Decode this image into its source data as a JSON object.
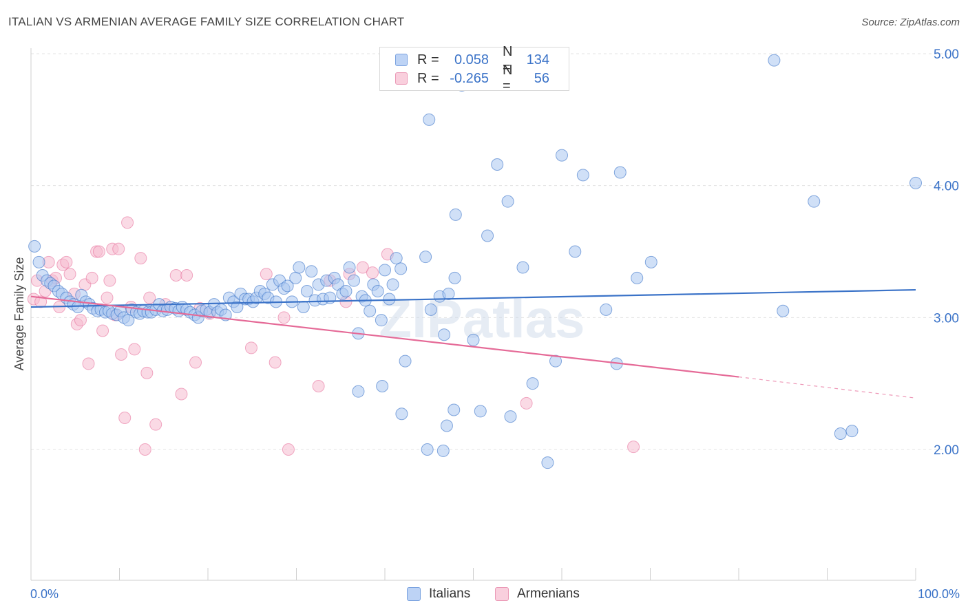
{
  "title": "ITALIAN VS ARMENIAN AVERAGE FAMILY SIZE CORRELATION CHART",
  "source": "Source: ZipAtlas.com",
  "watermark": "ZIPatlas",
  "legend": {
    "rows": [
      {
        "r_label": "R =",
        "r_value": "0.058",
        "n_label": "N =",
        "n_value": "134",
        "color": "#8fb3e8"
      },
      {
        "r_label": "R =",
        "r_value": "-0.265",
        "n_label": "N =",
        "n_value": "56",
        "color": "#f2a7c0"
      }
    ]
  },
  "bottom_legend": {
    "italians": "Italians",
    "armenians": "Armenians"
  },
  "chart_data": {
    "type": "scatter",
    "ylabel": "Average Family Size",
    "xlabel": "",
    "x_tick_labels": [
      "0.0%",
      "100.0%"
    ],
    "y_tick_labels": [
      "2.00",
      "3.00",
      "4.00",
      "5.00"
    ],
    "xlim": [
      0,
      100
    ],
    "ylim": [
      1.0,
      5.1
    ],
    "grid": true,
    "colors": {
      "italians": "#3b73c8",
      "italians_fill": "#a9c6f0",
      "armenians": "#e56a97",
      "armenians_fill": "#f5bcd0",
      "axis_text": "#3b73c8"
    },
    "series": [
      {
        "name": "Italians",
        "trend": {
          "x0": 0,
          "y0": 3.08,
          "x1": 100,
          "y1": 3.21
        },
        "points": [
          [
            0.4,
            3.54
          ],
          [
            0.9,
            3.42
          ],
          [
            1.3,
            3.32
          ],
          [
            1.8,
            3.28
          ],
          [
            2.2,
            3.26
          ],
          [
            2.6,
            3.24
          ],
          [
            3.1,
            3.2
          ],
          [
            3.5,
            3.18
          ],
          [
            4.0,
            3.15
          ],
          [
            4.4,
            3.12
          ],
          [
            4.8,
            3.1
          ],
          [
            5.3,
            3.08
          ],
          [
            5.7,
            3.17
          ],
          [
            6.2,
            3.12
          ],
          [
            6.6,
            3.1
          ],
          [
            7.0,
            3.07
          ],
          [
            7.5,
            3.05
          ],
          [
            7.9,
            3.06
          ],
          [
            8.4,
            3.04
          ],
          [
            8.8,
            3.05
          ],
          [
            9.2,
            3.03
          ],
          [
            9.7,
            3.02
          ],
          [
            10.1,
            3.05
          ],
          [
            10.5,
            3.0
          ],
          [
            11.0,
            2.98
          ],
          [
            11.4,
            3.06
          ],
          [
            11.9,
            3.04
          ],
          [
            12.3,
            3.03
          ],
          [
            12.7,
            3.05
          ],
          [
            13.2,
            3.04
          ],
          [
            13.6,
            3.04
          ],
          [
            14.1,
            3.06
          ],
          [
            14.5,
            3.1
          ],
          [
            14.9,
            3.05
          ],
          [
            15.4,
            3.06
          ],
          [
            15.8,
            3.08
          ],
          [
            16.3,
            3.07
          ],
          [
            16.7,
            3.05
          ],
          [
            17.1,
            3.08
          ],
          [
            17.6,
            3.06
          ],
          [
            18.0,
            3.04
          ],
          [
            18.5,
            3.02
          ],
          [
            18.9,
            3.0
          ],
          [
            19.3,
            3.05
          ],
          [
            19.8,
            3.06
          ],
          [
            20.2,
            3.04
          ],
          [
            20.7,
            3.1
          ],
          [
            21.1,
            3.04
          ],
          [
            21.5,
            3.06
          ],
          [
            22.0,
            3.02
          ],
          [
            22.4,
            3.15
          ],
          [
            22.9,
            3.12
          ],
          [
            23.3,
            3.08
          ],
          [
            23.7,
            3.18
          ],
          [
            24.2,
            3.14
          ],
          [
            24.6,
            3.14
          ],
          [
            25.1,
            3.12
          ],
          [
            25.5,
            3.15
          ],
          [
            25.9,
            3.2
          ],
          [
            26.4,
            3.18
          ],
          [
            26.8,
            3.15
          ],
          [
            27.3,
            3.25
          ],
          [
            27.7,
            3.12
          ],
          [
            28.1,
            3.28
          ],
          [
            28.6,
            3.22
          ],
          [
            29.0,
            3.24
          ],
          [
            29.5,
            3.12
          ],
          [
            29.9,
            3.3
          ],
          [
            30.3,
            3.38
          ],
          [
            30.8,
            3.08
          ],
          [
            31.2,
            3.2
          ],
          [
            31.7,
            3.35
          ],
          [
            32.1,
            3.13
          ],
          [
            32.5,
            3.25
          ],
          [
            33.0,
            3.14
          ],
          [
            33.4,
            3.28
          ],
          [
            33.8,
            3.15
          ],
          [
            34.3,
            3.3
          ],
          [
            34.7,
            3.25
          ],
          [
            35.2,
            3.18
          ],
          [
            35.6,
            3.2
          ],
          [
            36.0,
            3.38
          ],
          [
            36.5,
            3.28
          ],
          [
            37.0,
            2.88
          ],
          [
            37.4,
            3.16
          ],
          [
            37.8,
            3.13
          ],
          [
            38.3,
            3.05
          ],
          [
            38.7,
            3.25
          ],
          [
            39.2,
            3.2
          ],
          [
            39.6,
            2.98
          ],
          [
            40.0,
            3.36
          ],
          [
            40.5,
            3.14
          ],
          [
            40.9,
            3.25
          ],
          [
            41.3,
            3.45
          ],
          [
            41.8,
            3.37
          ],
          [
            42.3,
            2.67
          ],
          [
            44.6,
            3.46
          ],
          [
            45.0,
            4.5
          ],
          [
            45.2,
            3.06
          ],
          [
            46.2,
            3.16
          ],
          [
            46.7,
            2.87
          ],
          [
            47.2,
            3.18
          ],
          [
            47.9,
            3.3
          ],
          [
            48.0,
            3.78
          ],
          [
            48.7,
            4.76
          ],
          [
            50.8,
            2.29
          ],
          [
            50.0,
            2.83
          ],
          [
            51.6,
            3.62
          ],
          [
            52.7,
            4.16
          ],
          [
            53.9,
            3.88
          ],
          [
            54.2,
            2.25
          ],
          [
            55.6,
            3.38
          ],
          [
            56.7,
            2.5
          ],
          [
            47.8,
            2.3
          ],
          [
            47.0,
            2.18
          ],
          [
            46.6,
            1.99
          ],
          [
            44.8,
            2.0
          ],
          [
            41.9,
            2.27
          ],
          [
            39.7,
            2.48
          ],
          [
            37.0,
            2.44
          ],
          [
            58.4,
            1.9
          ],
          [
            59.3,
            2.67
          ],
          [
            60.0,
            4.23
          ],
          [
            61.5,
            3.5
          ],
          [
            62.4,
            4.08
          ],
          [
            65.0,
            3.06
          ],
          [
            66.2,
            2.65
          ],
          [
            66.6,
            4.1
          ],
          [
            68.5,
            3.3
          ],
          [
            70.1,
            3.42
          ],
          [
            85.0,
            3.05
          ],
          [
            84.0,
            4.95
          ],
          [
            88.5,
            3.88
          ],
          [
            91.5,
            2.12
          ],
          [
            92.8,
            2.14
          ],
          [
            100.0,
            4.02
          ]
        ]
      },
      {
        "name": "Armenians",
        "trend": {
          "x0": 0,
          "y0": 3.16,
          "x1": 80,
          "y1": 2.55,
          "dash_x1": 100,
          "dash_y1": 2.39
        },
        "points": [
          [
            0.3,
            3.14
          ],
          [
            0.7,
            3.28
          ],
          [
            1.1,
            3.12
          ],
          [
            1.6,
            3.2
          ],
          [
            2.0,
            3.42
          ],
          [
            2.4,
            3.28
          ],
          [
            2.8,
            3.3
          ],
          [
            3.2,
            3.08
          ],
          [
            3.6,
            3.4
          ],
          [
            4.0,
            3.42
          ],
          [
            4.4,
            3.33
          ],
          [
            4.9,
            3.18
          ],
          [
            5.2,
            2.95
          ],
          [
            5.6,
            2.98
          ],
          [
            6.1,
            3.25
          ],
          [
            6.5,
            2.65
          ],
          [
            6.9,
            3.3
          ],
          [
            7.4,
            3.5
          ],
          [
            7.7,
            3.5
          ],
          [
            8.1,
            2.9
          ],
          [
            8.6,
            3.15
          ],
          [
            8.9,
            3.28
          ],
          [
            9.2,
            3.52
          ],
          [
            9.5,
            3.02
          ],
          [
            9.9,
            3.52
          ],
          [
            10.2,
            2.72
          ],
          [
            10.6,
            2.24
          ],
          [
            10.9,
            3.72
          ],
          [
            11.3,
            3.08
          ],
          [
            11.7,
            2.76
          ],
          [
            12.4,
            3.45
          ],
          [
            12.9,
            2.0
          ],
          [
            13.1,
            2.58
          ],
          [
            13.4,
            3.15
          ],
          [
            14.1,
            2.19
          ],
          [
            15.2,
            3.1
          ],
          [
            16.4,
            3.32
          ],
          [
            17.0,
            2.42
          ],
          [
            17.6,
            3.32
          ],
          [
            18.6,
            2.66
          ],
          [
            19.1,
            3.07
          ],
          [
            20.2,
            3.03
          ],
          [
            24.9,
            2.77
          ],
          [
            26.6,
            3.33
          ],
          [
            27.6,
            2.66
          ],
          [
            28.6,
            3.0
          ],
          [
            29.1,
            2.0
          ],
          [
            32.5,
            2.48
          ],
          [
            33.8,
            3.28
          ],
          [
            35.6,
            3.12
          ],
          [
            37.5,
            3.38
          ],
          [
            38.6,
            3.34
          ],
          [
            40.3,
            3.48
          ],
          [
            68.1,
            2.02
          ],
          [
            56.0,
            2.35
          ],
          [
            36.0,
            3.33
          ]
        ]
      }
    ]
  }
}
